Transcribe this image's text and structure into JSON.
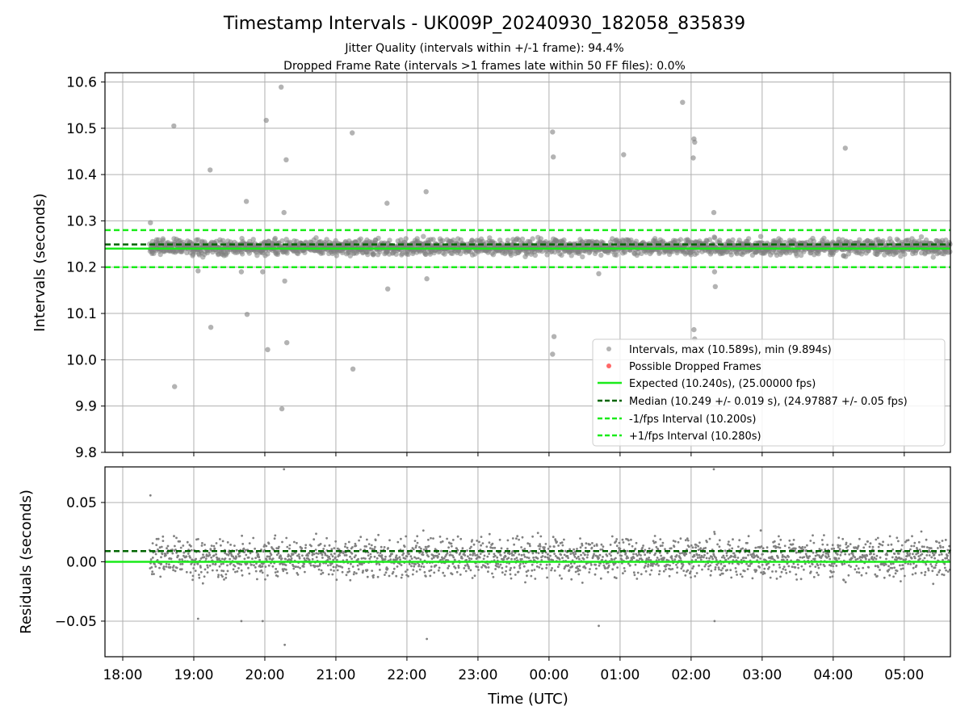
{
  "figure": {
    "title": "Timestamp Intervals - UK009P_20240930_182058_835839",
    "subtitle_1": "Jitter Quality (intervals within +/-1 frame): 94.4%",
    "subtitle_2": "Dropped Frame Rate (intervals >1 frames late within 50 FF files): 0.0%"
  },
  "colors": {
    "points": "#808080",
    "dropped": "#ff4d4d",
    "expected": "#1aeb1a",
    "median": "#006400",
    "interval": "#1aeb1a",
    "grid": "#b0b0b0"
  },
  "chart_data": [
    {
      "type": "scatter",
      "ylabel": "Intervals (seconds)",
      "ylim": [
        9.8,
        10.62
      ],
      "yticks": [
        "9.8",
        "9.9",
        "10.0",
        "10.1",
        "10.2",
        "10.3",
        "10.4",
        "10.5",
        "10.6"
      ],
      "grid": true,
      "legend_position": "lower-right",
      "x_range_hours": [
        17.75,
        29.65
      ],
      "reference_lines": {
        "expected": 10.24,
        "median": 10.249,
        "minus_interval": 10.2,
        "plus_interval": 10.28
      },
      "series": [
        {
          "name": "Intervals, max (10.589s), min (9.894s)",
          "summary": {
            "max": 10.589,
            "min": 9.894,
            "typical_low": 10.2,
            "typical_high": 10.29
          }
        },
        {
          "name": "Possible Dropped Frames",
          "values": []
        },
        {
          "name": "Expected (10.240s), (25.00000 fps)",
          "value": 10.24
        },
        {
          "name": "Median (10.249 +/- 0.019 s), (24.97887 +/- 0.05 fps)",
          "value": 10.249
        },
        {
          "name": "-1/fps Interval (10.200s)",
          "value": 10.2
        },
        {
          "name": "+1/fps Interval (10.280s)",
          "value": 10.28
        }
      ],
      "outliers": [
        {
          "t": 18.39,
          "y": 10.296
        },
        {
          "t": 18.72,
          "y": 10.505
        },
        {
          "t": 18.73,
          "y": 9.942
        },
        {
          "t": 19.06,
          "y": 10.192
        },
        {
          "t": 19.23,
          "y": 10.41
        },
        {
          "t": 19.24,
          "y": 10.07
        },
        {
          "t": 19.67,
          "y": 10.19
        },
        {
          "t": 19.74,
          "y": 10.342
        },
        {
          "t": 19.75,
          "y": 10.098
        },
        {
          "t": 19.97,
          "y": 10.19
        },
        {
          "t": 20.02,
          "y": 10.517
        },
        {
          "t": 20.04,
          "y": 10.022
        },
        {
          "t": 20.23,
          "y": 10.589
        },
        {
          "t": 20.24,
          "y": 9.894
        },
        {
          "t": 20.27,
          "y": 10.318
        },
        {
          "t": 20.28,
          "y": 10.17
        },
        {
          "t": 20.3,
          "y": 10.432
        },
        {
          "t": 20.31,
          "y": 10.037
        },
        {
          "t": 21.23,
          "y": 10.49
        },
        {
          "t": 21.24,
          "y": 9.98
        },
        {
          "t": 21.72,
          "y": 10.338
        },
        {
          "t": 21.73,
          "y": 10.153
        },
        {
          "t": 22.27,
          "y": 10.363
        },
        {
          "t": 22.28,
          "y": 10.175
        },
        {
          "t": 24.05,
          "y": 10.492
        },
        {
          "t": 24.06,
          "y": 10.438
        },
        {
          "t": 24.07,
          "y": 10.05
        },
        {
          "t": 24.05,
          "y": 10.012
        },
        {
          "t": 24.7,
          "y": 10.186
        },
        {
          "t": 25.05,
          "y": 10.443
        },
        {
          "t": 25.88,
          "y": 10.556
        },
        {
          "t": 26.04,
          "y": 10.477
        },
        {
          "t": 26.05,
          "y": 10.47
        },
        {
          "t": 26.03,
          "y": 10.436
        },
        {
          "t": 26.04,
          "y": 10.065
        },
        {
          "t": 26.05,
          "y": 10.045
        },
        {
          "t": 26.32,
          "y": 10.318
        },
        {
          "t": 26.33,
          "y": 10.19
        },
        {
          "t": 26.34,
          "y": 10.158
        },
        {
          "t": 28.17,
          "y": 10.457
        }
      ]
    },
    {
      "type": "scatter",
      "xlabel": "Time (UTC)",
      "ylabel": "Residuals (seconds)",
      "ylim": [
        -0.08,
        0.08
      ],
      "yticks": [
        "−0.05",
        "0.00",
        "0.05"
      ],
      "ytick_values": [
        -0.05,
        0.0,
        0.05
      ],
      "xticks": [
        "18:00",
        "19:00",
        "20:00",
        "21:00",
        "22:00",
        "23:00",
        "00:00",
        "01:00",
        "02:00",
        "03:00",
        "04:00",
        "05:00"
      ],
      "xtick_hours": [
        18,
        19,
        20,
        21,
        22,
        23,
        24,
        25,
        26,
        27,
        28,
        29
      ],
      "x_range_hours": [
        17.75,
        29.65
      ],
      "grid": true,
      "reference_lines": {
        "expected": 0.0,
        "median": 0.009
      },
      "summary": {
        "max": 0.08,
        "min": -0.07
      }
    }
  ]
}
